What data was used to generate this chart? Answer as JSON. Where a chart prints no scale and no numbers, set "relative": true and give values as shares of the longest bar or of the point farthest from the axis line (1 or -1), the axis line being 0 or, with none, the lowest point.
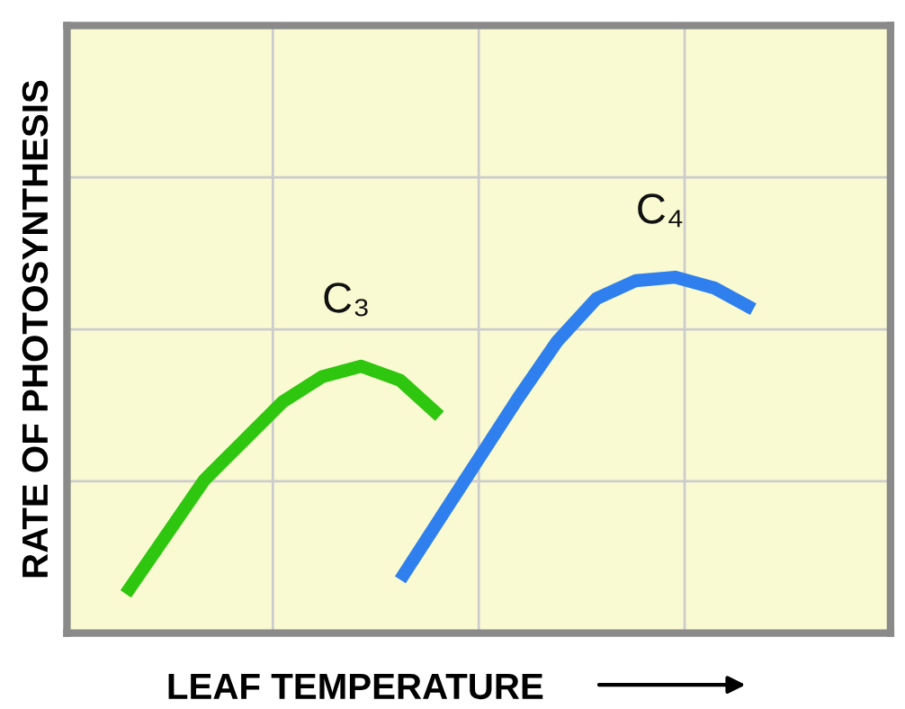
{
  "chart_data": {
    "type": "line",
    "relative": true,
    "xlabel": "LEAF TEMPERATURE",
    "ylabel": "RATE OF PHOTOSYNTHESIS",
    "grid": true,
    "legend": false,
    "categories": [
      null,
      null,
      null,
      null,
      null,
      null,
      null,
      null,
      null,
      null,
      null,
      null,
      null,
      null,
      null,
      null,
      null,
      null,
      null,
      null,
      null
    ],
    "series": [
      {
        "name": "C₃",
        "color": "#2ec60f",
        "values": [
          null,
          0.11,
          0.27,
          0.43,
          0.54,
          0.65,
          0.72,
          0.75,
          0.71,
          0.61,
          null,
          null,
          null,
          null,
          null,
          null,
          null,
          null,
          null,
          null,
          null
        ]
      },
      {
        "name": "C₄",
        "color": "#2f80ee",
        "values": [
          null,
          null,
          null,
          null,
          null,
          null,
          null,
          null,
          0.15,
          0.32,
          0.49,
          0.66,
          0.82,
          0.94,
          0.99,
          1.0,
          0.97,
          0.91,
          null,
          null,
          null
        ]
      }
    ]
  }
}
